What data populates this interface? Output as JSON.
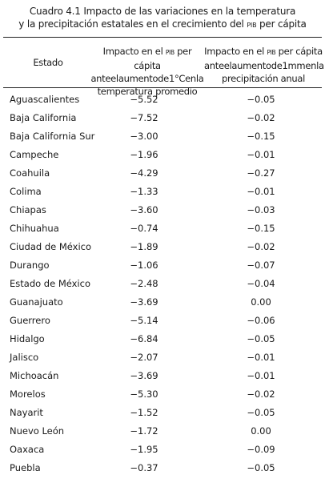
{
  "caption": {
    "line1": "Cuadro 4.1 Impacto de las variaciones en la temperatura",
    "line2_pre": "y la precipitación estatales en el crecimiento del ",
    "line2_pib": "PIB",
    "line2_post": " per cápita"
  },
  "headers": {
    "estado": "Estado",
    "temp_line1_pre": "Impacto en el ",
    "temp_line1_pib": "PIB",
    "temp_line1_post": " per cápita",
    "temp_line2": "anteelaumentode1°Cenla",
    "temp_line3": "temperatura promedio",
    "prec_line1_pre": "Impacto en el ",
    "prec_line1_pib": "PIB",
    "prec_line1_post": " per cápita",
    "prec_line2": "anteelaumentode1mmenla",
    "prec_line3": "precipitación anual"
  },
  "rows": [
    {
      "estado": "Aguascalientes",
      "temp": "−5.52",
      "prec": "−0.05"
    },
    {
      "estado": "Baja California",
      "temp": "−7.52",
      "prec": "−0.02"
    },
    {
      "estado": "Baja California Sur",
      "temp": "−3.00",
      "prec": "−0.15"
    },
    {
      "estado": "Campeche",
      "temp": "−1.96",
      "prec": "−0.01"
    },
    {
      "estado": "Coahuila",
      "temp": "−4.29",
      "prec": "−0.27"
    },
    {
      "estado": "Colima",
      "temp": "−1.33",
      "prec": "−0.01"
    },
    {
      "estado": "Chiapas",
      "temp": "−3.60",
      "prec": "−0.03"
    },
    {
      "estado": "Chihuahua",
      "temp": "−0.74",
      "prec": "−0.15"
    },
    {
      "estado": "Ciudad de México",
      "temp": "−1.89",
      "prec": "−0.02"
    },
    {
      "estado": "Durango",
      "temp": "−1.06",
      "prec": "−0.07"
    },
    {
      "estado": "Estado de México",
      "temp": "−2.48",
      "prec": "−0.04"
    },
    {
      "estado": "Guanajuato",
      "temp": "−3.69",
      "prec": "0.00"
    },
    {
      "estado": "Guerrero",
      "temp": "−5.14",
      "prec": "−0.06"
    },
    {
      "estado": "Hidalgo",
      "temp": "−6.84",
      "prec": "−0.05"
    },
    {
      "estado": "Jalisco",
      "temp": "−2.07",
      "prec": "−0.01"
    },
    {
      "estado": "Michoacán",
      "temp": "−3.69",
      "prec": "−0.01"
    },
    {
      "estado": "Morelos",
      "temp": "−5.30",
      "prec": "−0.02"
    },
    {
      "estado": "Nayarit",
      "temp": "−1.52",
      "prec": "−0.05"
    },
    {
      "estado": "Nuevo León",
      "temp": "−1.72",
      "prec": "0.00"
    },
    {
      "estado": "Oaxaca",
      "temp": "−1.95",
      "prec": "−0.09"
    },
    {
      "estado": "Puebla",
      "temp": "−0.37",
      "prec": "−0.05"
    }
  ]
}
